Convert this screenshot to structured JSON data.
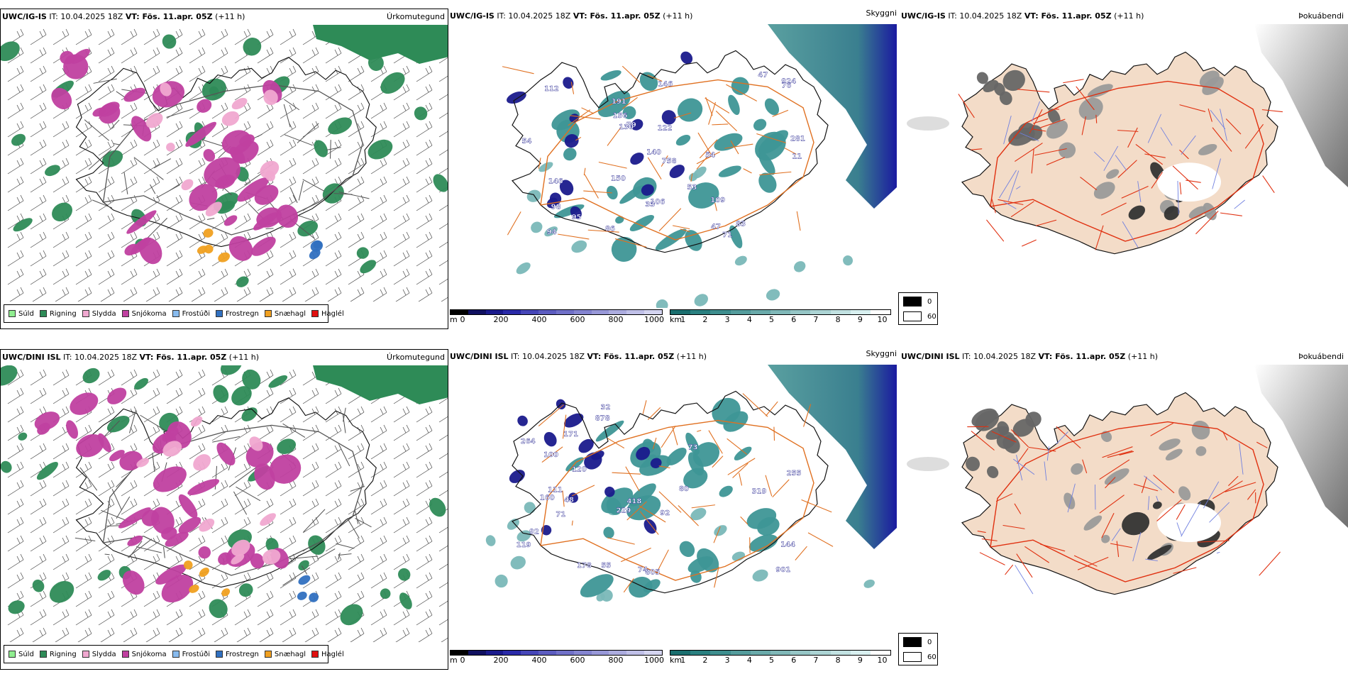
{
  "rows": [
    {
      "model": "UWC/IG-IS",
      "it_label": "IT: 10.04.2025 18Z",
      "vt_label": "VT: Fös. 11.apr. 05Z",
      "lead": "(+11 h)",
      "cloud_labels": [
        "924",
        "83",
        "54",
        "146",
        "191",
        "71",
        "79",
        "54",
        "86",
        "76",
        "112",
        "146",
        "106",
        "281",
        "140",
        "150",
        "53",
        "109",
        "47",
        "156",
        "98",
        "130",
        "758",
        "94",
        "95",
        "33",
        "11",
        "47",
        "122"
      ]
    },
    {
      "model": "UWC/DINI ISL",
      "it_label": "IT: 10.04.2025 18Z",
      "vt_label": "VT: Fös. 11.apr. 05Z",
      "lead": "(+11 h)",
      "cloud_labels": [
        "160",
        "171",
        "255",
        "92",
        "264",
        "48",
        "119",
        "55",
        "144",
        "878",
        "229",
        "80",
        "178",
        "92",
        "74",
        "71",
        "100",
        "319",
        "418",
        "805",
        "111",
        "32",
        "901",
        "73",
        "120"
      ]
    }
  ],
  "panel_names": {
    "precip": "Úrkomutegund",
    "visibility": "Skyggni",
    "fog": "Þokuábendi"
  },
  "precip_legend": [
    {
      "label": "Súld",
      "color": "#90ee90"
    },
    {
      "label": "Rigning",
      "color": "#2e8b57"
    },
    {
      "label": "Slydda",
      "color": "#f0a8d0"
    },
    {
      "label": "Snjókoma",
      "color": "#c040a0"
    },
    {
      "label": "Frostúði",
      "color": "#88bbee"
    },
    {
      "label": "Frostregn",
      "color": "#3070c0"
    },
    {
      "label": "Snæhagl",
      "color": "#f0a020"
    },
    {
      "label": "Haglél",
      "color": "#e01010"
    }
  ],
  "ceiling_bar": {
    "unit": "m",
    "ticks": [
      "0",
      "200",
      "400",
      "600",
      "800",
      "1000"
    ],
    "colors": [
      "#000000",
      "#101060",
      "#1a1a8c",
      "#2a2aa8",
      "#4646b8",
      "#5c5cc0",
      "#7070c8",
      "#8484d0",
      "#9898d8",
      "#acacdf",
      "#c0c0e8",
      "#d4d4f0"
    ]
  },
  "vis_bar": {
    "unit": "km",
    "ticks": [
      "1",
      "2",
      "3",
      "4",
      "5",
      "6",
      "7",
      "8",
      "9",
      "10"
    ],
    "colors": [
      "#1a6e6e",
      "#2a8080",
      "#3e8e8e",
      "#549c9c",
      "#6aaaaa",
      "#80b8b8",
      "#96c6c6",
      "#acd4d4",
      "#c2e2e2",
      "#d8f0f0",
      "#ffffff"
    ]
  },
  "fog_legend": {
    "values": [
      "0",
      "60"
    ]
  },
  "colors": {
    "land": "#f3dcc8",
    "coast": "#111111",
    "road_orange": "#e07020",
    "road_red": "#e03010",
    "river": "#7080e0",
    "rain": "#2e8b57",
    "snow": "#c040a0",
    "sleet": "#f0a8d0",
    "teal": "#3e9696",
    "navy": "#1a1a8c"
  }
}
